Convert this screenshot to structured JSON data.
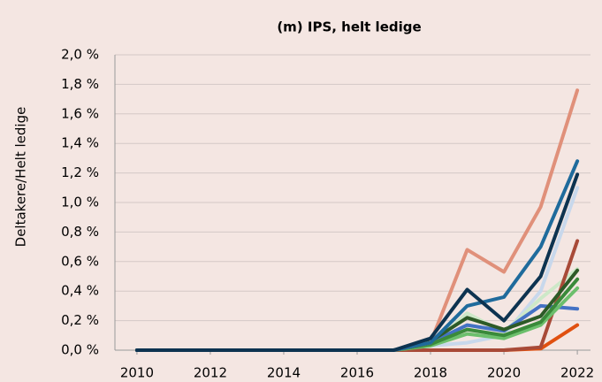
{
  "chart_data": {
    "type": "line",
    "title": "(m) IPS, helt ledige",
    "y_label": "Deltakere/Helt ledige",
    "x": [
      2010,
      2011,
      2012,
      2013,
      2014,
      2015,
      2016,
      2017,
      2018,
      2019,
      2020,
      2021,
      2022
    ],
    "xlim": [
      2009.4,
      2022.6
    ],
    "xticks": [
      2010,
      2012,
      2014,
      2016,
      2018,
      2020,
      2022
    ],
    "ylim": [
      0,
      2.0
    ],
    "yticks": [
      {
        "value": 0,
        "label": "0,0 %"
      },
      {
        "value": 0.2,
        "label": "0,2 %"
      },
      {
        "value": 0.4,
        "label": "0,4 %"
      },
      {
        "value": 0.6,
        "label": "0,6 %"
      },
      {
        "value": 0.8,
        "label": "0,8 %"
      },
      {
        "value": 1.0,
        "label": "1,0 %"
      },
      {
        "value": 1.2,
        "label": "1,2 %"
      },
      {
        "value": 1.4,
        "label": "1,4 %"
      },
      {
        "value": 1.6,
        "label": "1,6 %"
      },
      {
        "value": 1.8,
        "label": "1,8 %"
      },
      {
        "value": 2.0,
        "label": "2,0 %"
      }
    ],
    "grid": true,
    "series": [
      {
        "color": "#c8d8ec",
        "values": [
          0,
          0,
          0,
          0,
          0,
          0,
          0,
          0,
          0.03,
          0.05,
          0.1,
          0.4,
          1.1
        ]
      },
      {
        "color": "#cde8c8",
        "values": [
          0,
          0,
          0,
          0,
          0,
          0,
          0,
          0,
          0.03,
          0.25,
          0.12,
          0.35,
          0.55
        ]
      },
      {
        "color": "#e05010",
        "values": [
          0,
          0,
          0,
          0,
          0,
          0,
          0,
          0,
          0,
          0,
          0,
          0.01,
          0.17
        ]
      },
      {
        "color": "#a84a38",
        "values": [
          0,
          0,
          0,
          0,
          0,
          0,
          0,
          0,
          0,
          0,
          0,
          0.02,
          0.74
        ]
      },
      {
        "color": "#4472c4",
        "values": [
          0,
          0,
          0,
          0,
          0,
          0,
          0,
          0,
          0.05,
          0.17,
          0.13,
          0.3,
          0.28
        ]
      },
      {
        "color": "#6cbf6c",
        "values": [
          0,
          0,
          0,
          0,
          0,
          0,
          0,
          0,
          0.03,
          0.11,
          0.08,
          0.17,
          0.42
        ]
      },
      {
        "color": "#3a8a3a",
        "values": [
          0,
          0,
          0,
          0,
          0,
          0,
          0,
          0,
          0.04,
          0.14,
          0.1,
          0.19,
          0.48
        ]
      },
      {
        "color": "#2d5a27",
        "values": [
          0,
          0,
          0,
          0,
          0,
          0,
          0,
          0,
          0.06,
          0.22,
          0.14,
          0.23,
          0.54
        ]
      },
      {
        "color": "#e0907a",
        "values": [
          0,
          0,
          0,
          0,
          0,
          0,
          0,
          0,
          0.05,
          0.68,
          0.53,
          0.97,
          1.76
        ]
      },
      {
        "color": "#1f6b9c",
        "values": [
          0,
          0,
          0,
          0,
          0,
          0,
          0,
          0,
          0.05,
          0.3,
          0.36,
          0.7,
          1.28
        ]
      },
      {
        "color": "#0d3350",
        "values": [
          0,
          0,
          0,
          0,
          0,
          0,
          0,
          0,
          0.08,
          0.41,
          0.2,
          0.5,
          1.19
        ]
      }
    ]
  }
}
